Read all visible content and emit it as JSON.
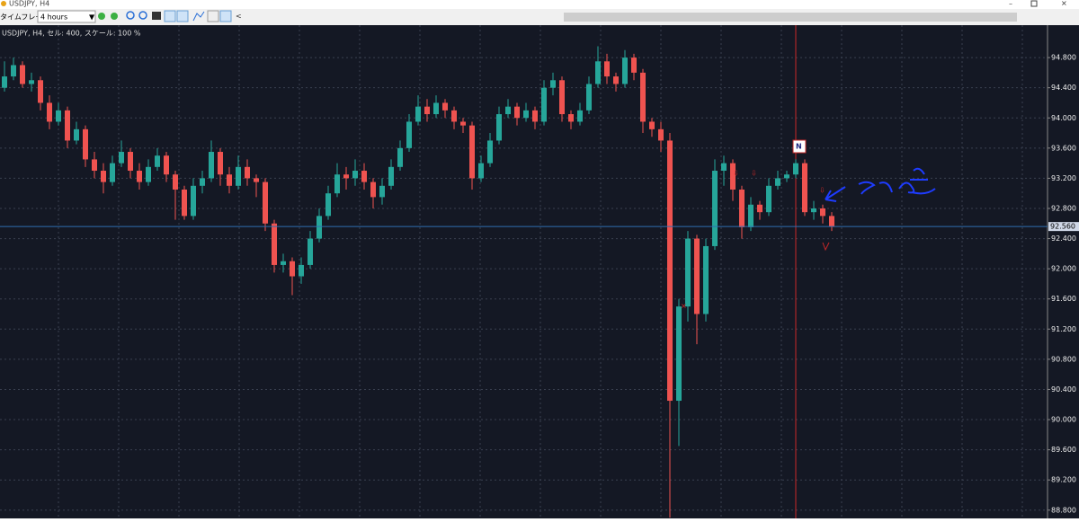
{
  "window": {
    "title": "USDJPY, H4"
  },
  "toolbar": {
    "timeframe_label": "タイムフレーム",
    "timeframe_value": "4 hours"
  },
  "chart_data": {
    "type": "candlestick",
    "info": "USDJPY, H4, セル: 400, スケール: 100 %",
    "up_color": "#26a69a",
    "down_color": "#ef5350",
    "grid": true,
    "ylim": [
      88.69,
      95.23
    ],
    "yticks": [
      {
        "value": 88.8,
        "label": "88.800"
      },
      {
        "value": 89.2,
        "label": "89.200"
      },
      {
        "value": 89.6,
        "label": "89.600"
      },
      {
        "value": 90.0,
        "label": "90.000"
      },
      {
        "value": 90.4,
        "label": "90.400"
      },
      {
        "value": 90.8,
        "label": "90.800"
      },
      {
        "value": 91.2,
        "label": "91.200"
      },
      {
        "value": 91.6,
        "label": "91.600"
      },
      {
        "value": 92.0,
        "label": "92.000"
      },
      {
        "value": 92.4,
        "label": "92.400"
      },
      {
        "value": 92.8,
        "label": "92.800"
      },
      {
        "value": 93.2,
        "label": "93.200"
      },
      {
        "value": 93.6,
        "label": "93.600"
      },
      {
        "value": 94.0,
        "label": "94.000"
      },
      {
        "value": 94.4,
        "label": "94.400"
      },
      {
        "value": 94.8,
        "label": "94.800"
      }
    ],
    "last_price": {
      "value": 92.56,
      "label": "92.560"
    },
    "candles": [
      [
        94.4,
        94.75,
        94.35,
        94.55
      ],
      [
        94.55,
        94.8,
        94.5,
        94.7
      ],
      [
        94.7,
        94.75,
        94.4,
        94.45
      ],
      [
        94.45,
        94.6,
        94.35,
        94.5
      ],
      [
        94.5,
        94.55,
        94.1,
        94.2
      ],
      [
        94.2,
        94.3,
        93.85,
        93.95
      ],
      [
        93.95,
        94.2,
        93.9,
        94.1
      ],
      [
        94.1,
        94.15,
        93.6,
        93.7
      ],
      [
        93.7,
        93.95,
        93.65,
        93.85
      ],
      [
        93.85,
        93.9,
        93.35,
        93.45
      ],
      [
        93.45,
        93.55,
        93.2,
        93.3
      ],
      [
        93.3,
        93.4,
        93.0,
        93.15
      ],
      [
        93.15,
        93.5,
        93.1,
        93.4
      ],
      [
        93.4,
        93.7,
        93.35,
        93.55
      ],
      [
        93.55,
        93.6,
        93.2,
        93.3
      ],
      [
        93.3,
        93.4,
        93.05,
        93.15
      ],
      [
        93.15,
        93.45,
        93.1,
        93.35
      ],
      [
        93.35,
        93.6,
        93.3,
        93.5
      ],
      [
        93.5,
        93.55,
        93.15,
        93.25
      ],
      [
        93.25,
        93.3,
        92.65,
        93.05
      ],
      [
        93.05,
        93.1,
        92.65,
        92.7
      ],
      [
        92.7,
        93.2,
        92.65,
        93.1
      ],
      [
        93.1,
        93.3,
        93.0,
        93.2
      ],
      [
        93.2,
        93.7,
        93.15,
        93.55
      ],
      [
        93.55,
        93.6,
        93.1,
        93.25
      ],
      [
        93.25,
        93.35,
        93.0,
        93.1
      ],
      [
        93.1,
        93.5,
        93.05,
        93.35
      ],
      [
        93.35,
        93.45,
        93.1,
        93.2
      ],
      [
        93.2,
        93.25,
        92.95,
        93.15
      ],
      [
        93.15,
        93.2,
        92.5,
        92.6
      ],
      [
        92.6,
        92.65,
        91.95,
        92.05
      ],
      [
        92.05,
        92.2,
        91.95,
        92.1
      ],
      [
        92.1,
        92.15,
        91.65,
        91.9
      ],
      [
        91.9,
        92.15,
        91.8,
        92.05
      ],
      [
        92.05,
        92.5,
        92.0,
        92.4
      ],
      [
        92.4,
        92.8,
        92.35,
        92.7
      ],
      [
        92.7,
        93.1,
        92.65,
        93.0
      ],
      [
        93.0,
        93.4,
        92.95,
        93.25
      ],
      [
        93.25,
        93.35,
        93.05,
        93.2
      ],
      [
        93.2,
        93.45,
        93.1,
        93.3
      ],
      [
        93.3,
        93.4,
        93.05,
        93.15
      ],
      [
        93.15,
        93.2,
        92.8,
        92.95
      ],
      [
        92.95,
        93.2,
        92.85,
        93.1
      ],
      [
        93.1,
        93.45,
        93.05,
        93.35
      ],
      [
        93.35,
        93.7,
        93.3,
        93.6
      ],
      [
        93.6,
        94.05,
        93.55,
        93.95
      ],
      [
        93.95,
        94.3,
        93.9,
        94.15
      ],
      [
        94.15,
        94.25,
        93.95,
        94.05
      ],
      [
        94.05,
        94.3,
        94.0,
        94.2
      ],
      [
        94.2,
        94.25,
        94.0,
        94.1
      ],
      [
        94.1,
        94.15,
        93.85,
        93.95
      ],
      [
        93.95,
        94.0,
        93.8,
        93.9
      ],
      [
        93.9,
        93.95,
        93.05,
        93.2
      ],
      [
        93.2,
        93.5,
        93.15,
        93.4
      ],
      [
        93.4,
        93.8,
        93.35,
        93.7
      ],
      [
        93.7,
        94.15,
        93.65,
        94.05
      ],
      [
        94.05,
        94.25,
        94.0,
        94.15
      ],
      [
        94.15,
        94.2,
        93.9,
        94.0
      ],
      [
        94.0,
        94.2,
        93.95,
        94.1
      ],
      [
        94.1,
        94.15,
        93.85,
        93.95
      ],
      [
        93.95,
        94.5,
        93.9,
        94.4
      ],
      [
        94.4,
        94.6,
        94.3,
        94.5
      ],
      [
        94.5,
        94.55,
        93.95,
        94.05
      ],
      [
        94.05,
        94.1,
        93.85,
        93.95
      ],
      [
        93.95,
        94.2,
        93.9,
        94.1
      ],
      [
        94.1,
        94.55,
        94.05,
        94.45
      ],
      [
        94.45,
        94.95,
        94.4,
        94.75
      ],
      [
        94.75,
        94.85,
        94.45,
        94.55
      ],
      [
        94.55,
        94.6,
        94.35,
        94.45
      ],
      [
        94.45,
        94.9,
        94.4,
        94.8
      ],
      [
        94.8,
        94.85,
        94.5,
        94.6
      ],
      [
        94.6,
        94.65,
        93.8,
        93.95
      ],
      [
        93.95,
        94.0,
        93.75,
        93.85
      ],
      [
        93.85,
        93.95,
        93.55,
        93.7
      ],
      [
        93.7,
        93.8,
        88.7,
        90.25
      ],
      [
        90.25,
        91.6,
        89.65,
        91.5
      ],
      [
        91.5,
        92.5,
        91.3,
        92.4
      ],
      [
        92.4,
        92.45,
        91.0,
        91.4
      ],
      [
        91.4,
        92.4,
        91.3,
        92.3
      ],
      [
        92.3,
        93.45,
        92.25,
        93.3
      ],
      [
        93.3,
        93.5,
        93.1,
        93.4
      ],
      [
        93.4,
        93.45,
        92.9,
        93.05
      ],
      [
        93.05,
        93.1,
        92.4,
        92.55
      ],
      [
        92.55,
        92.95,
        92.5,
        92.85
      ],
      [
        92.85,
        92.9,
        92.65,
        92.75
      ],
      [
        92.75,
        93.2,
        92.7,
        93.1
      ],
      [
        93.1,
        93.3,
        93.05,
        93.2
      ],
      [
        93.2,
        93.3,
        93.15,
        93.25
      ],
      [
        93.25,
        93.45,
        93.2,
        93.4
      ],
      [
        93.4,
        93.45,
        92.7,
        92.75
      ],
      [
        92.75,
        92.9,
        92.65,
        92.8
      ],
      [
        92.8,
        92.85,
        92.6,
        92.7
      ],
      [
        92.7,
        92.75,
        92.5,
        92.56
      ]
    ]
  }
}
